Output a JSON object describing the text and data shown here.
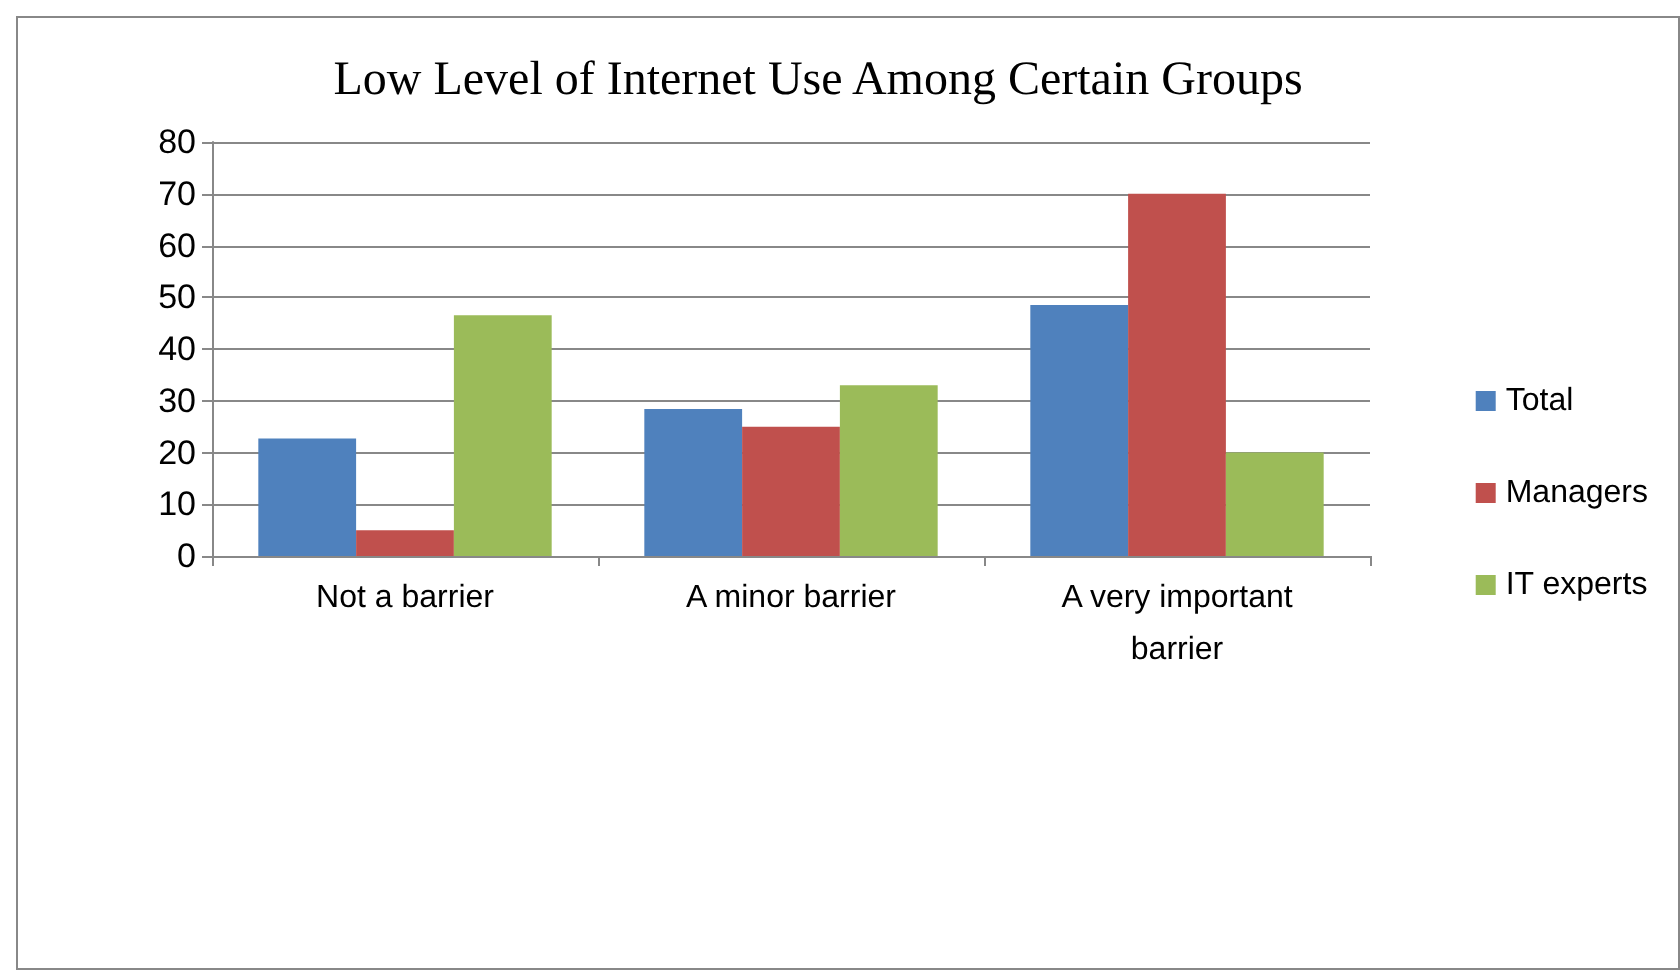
{
  "chart_data": {
    "type": "bar",
    "title": "Low Level of Internet Use Among Certain Groups",
    "categories": [
      "Not a barrier",
      "A minor barrier",
      "A very important barrier"
    ],
    "series": [
      {
        "name": "Total",
        "color": "#4f81bd",
        "values": [
          22.7,
          28.4,
          48.5
        ]
      },
      {
        "name": "Managers",
        "color": "#c0504d",
        "values": [
          5,
          25,
          70
        ]
      },
      {
        "name": "IT experts",
        "color": "#9bbb59",
        "values": [
          46.5,
          33,
          20
        ]
      }
    ],
    "ylim": [
      0,
      80
    ],
    "yticks": [
      0,
      10,
      20,
      30,
      40,
      50,
      60,
      70,
      80
    ],
    "grid": "y",
    "legend": "right"
  }
}
